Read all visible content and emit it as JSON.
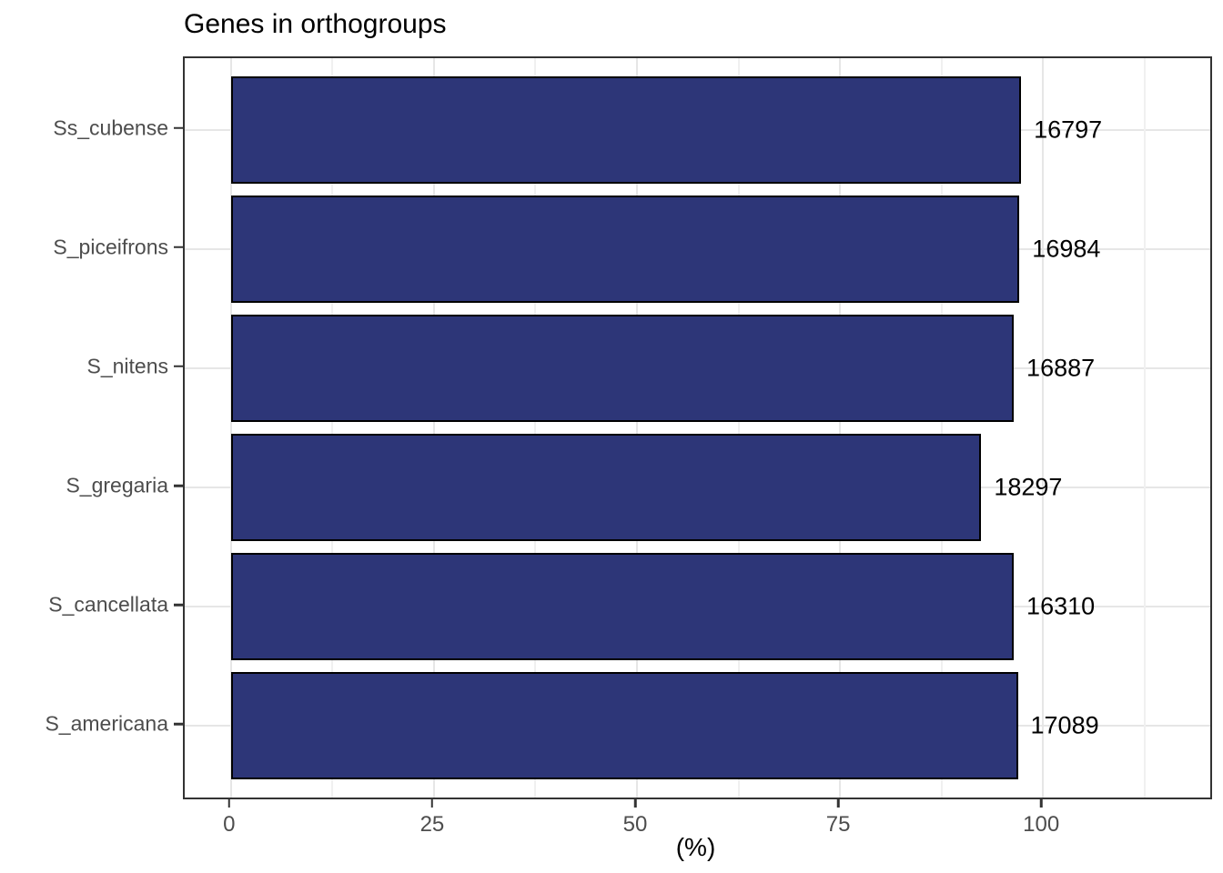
{
  "chart_data": {
    "type": "bar",
    "orientation": "horizontal",
    "title": "Genes in orthogroups",
    "xlabel": "(%)",
    "ylabel": "",
    "categories": [
      "Ss_cubense",
      "S_piceifrons",
      "S_nitens",
      "S_gregaria",
      "S_cancellata",
      "S_americana"
    ],
    "series": [
      {
        "name": "Genes in orthogroups (%)",
        "values": [
          97.3,
          97.1,
          96.4,
          92.4,
          96.4,
          96.9
        ]
      }
    ],
    "bar_labels": [
      "16797",
      "16984",
      "16887",
      "18297",
      "16310",
      "17089"
    ],
    "x_ticks": [
      0,
      25,
      50,
      75,
      100
    ],
    "x_tick_labels": [
      "0",
      "25",
      "50",
      "75",
      "100"
    ],
    "x_minor_ticks": [
      12.5,
      37.5,
      62.5,
      87.5,
      112.5
    ],
    "xlim": [
      -5.7,
      120.6
    ],
    "grid": "major and minor vertical, major horizontal",
    "legend": "none",
    "colors": {
      "bar_fill": "#2d3678",
      "bar_border": "#000000",
      "grid_major": "#e6e6e6",
      "grid_minor": "#f0f0f0",
      "panel_border": "#333333",
      "axis_tick": "#333333",
      "tick_label": "#4d4d4d",
      "title": "#000000",
      "background": "#ffffff"
    }
  }
}
